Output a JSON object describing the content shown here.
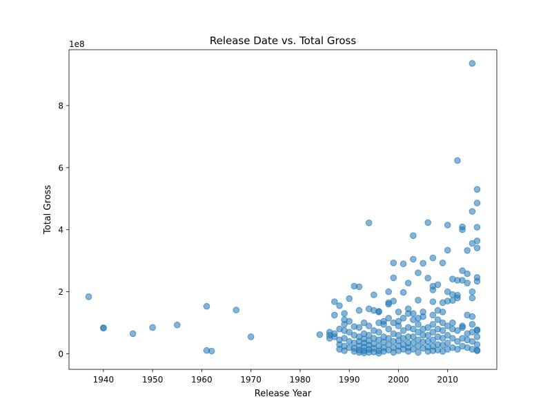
{
  "chart_data": {
    "type": "scatter",
    "title": "Release Date vs. Total Gross",
    "xlabel": "Release Year",
    "ylabel": "Total Gross",
    "y_offset_text": "1e8",
    "xlim": [
      1933,
      2020
    ],
    "ylim": [
      -50000000.0,
      980000000.0
    ],
    "x_ticks": [
      1940,
      1950,
      1960,
      1970,
      1980,
      1990,
      2000,
      2010
    ],
    "x_tick_labels": [
      "1940",
      "1950",
      "1960",
      "1970",
      "1980",
      "1990",
      "2000",
      "2010"
    ],
    "y_ticks": [
      0,
      200000000,
      400000000,
      600000000,
      800000000
    ],
    "y_tick_labels": [
      "0",
      "2",
      "4",
      "6",
      "8"
    ],
    "grid": false,
    "marker_color": "#1f77b4",
    "marker_alpha": 0.55,
    "points": [
      {
        "x": 1937,
        "y": 184000000
      },
      {
        "x": 1940,
        "y": 84000000
      },
      {
        "x": 1940,
        "y": 83000000
      },
      {
        "x": 1946,
        "y": 65000000
      },
      {
        "x": 1950,
        "y": 85000000
      },
      {
        "x": 1955,
        "y": 93000000
      },
      {
        "x": 1961,
        "y": 153000000
      },
      {
        "x": 1961,
        "y": 11000000
      },
      {
        "x": 1962,
        "y": 9000000
      },
      {
        "x": 1967,
        "y": 141000000
      },
      {
        "x": 1970,
        "y": 55000000
      },
      {
        "x": 1984,
        "y": 62000000
      },
      {
        "x": 1986,
        "y": 70000000
      },
      {
        "x": 1986,
        "y": 60000000
      },
      {
        "x": 1986,
        "y": 50000000
      },
      {
        "x": 1987,
        "y": 168000000
      },
      {
        "x": 1987,
        "y": 125000000
      },
      {
        "x": 1987,
        "y": 65000000
      },
      {
        "x": 1987,
        "y": 55000000
      },
      {
        "x": 1988,
        "y": 155000000
      },
      {
        "x": 1988,
        "y": 80000000
      },
      {
        "x": 1988,
        "y": 45000000
      },
      {
        "x": 1988,
        "y": 30000000
      },
      {
        "x": 1988,
        "y": 15000000
      },
      {
        "x": 1989,
        "y": 130000000
      },
      {
        "x": 1989,
        "y": 110000000
      },
      {
        "x": 1989,
        "y": 95000000
      },
      {
        "x": 1989,
        "y": 75000000
      },
      {
        "x": 1989,
        "y": 50000000
      },
      {
        "x": 1989,
        "y": 25000000
      },
      {
        "x": 1989,
        "y": 10000000
      },
      {
        "x": 1990,
        "y": 178000000
      },
      {
        "x": 1990,
        "y": 105000000
      },
      {
        "x": 1990,
        "y": 70000000
      },
      {
        "x": 1990,
        "y": 40000000
      },
      {
        "x": 1990,
        "y": 20000000
      },
      {
        "x": 1991,
        "y": 218000000
      },
      {
        "x": 1991,
        "y": 88000000
      },
      {
        "x": 1991,
        "y": 60000000
      },
      {
        "x": 1991,
        "y": 35000000
      },
      {
        "x": 1991,
        "y": 18000000
      },
      {
        "x": 1991,
        "y": 8000000
      },
      {
        "x": 1992,
        "y": 216000000
      },
      {
        "x": 1992,
        "y": 140000000
      },
      {
        "x": 1992,
        "y": 85000000
      },
      {
        "x": 1992,
        "y": 55000000
      },
      {
        "x": 1992,
        "y": 40000000
      },
      {
        "x": 1992,
        "y": 25000000
      },
      {
        "x": 1992,
        "y": 12000000
      },
      {
        "x": 1992,
        "y": 5000000
      },
      {
        "x": 1993,
        "y": 100000000
      },
      {
        "x": 1993,
        "y": 65000000
      },
      {
        "x": 1993,
        "y": 48000000
      },
      {
        "x": 1993,
        "y": 35000000
      },
      {
        "x": 1993,
        "y": 22000000
      },
      {
        "x": 1993,
        "y": 10000000
      },
      {
        "x": 1993,
        "y": 3000000
      },
      {
        "x": 1994,
        "y": 422000000
      },
      {
        "x": 1994,
        "y": 145000000
      },
      {
        "x": 1994,
        "y": 90000000
      },
      {
        "x": 1994,
        "y": 60000000
      },
      {
        "x": 1994,
        "y": 42000000
      },
      {
        "x": 1994,
        "y": 28000000
      },
      {
        "x": 1994,
        "y": 15000000
      },
      {
        "x": 1994,
        "y": 5000000
      },
      {
        "x": 1995,
        "y": 190000000
      },
      {
        "x": 1995,
        "y": 140000000
      },
      {
        "x": 1995,
        "y": 75000000
      },
      {
        "x": 1995,
        "y": 50000000
      },
      {
        "x": 1995,
        "y": 32000000
      },
      {
        "x": 1995,
        "y": 18000000
      },
      {
        "x": 1995,
        "y": 6000000
      },
      {
        "x": 1996,
        "y": 137000000
      },
      {
        "x": 1996,
        "y": 135000000
      },
      {
        "x": 1996,
        "y": 100000000
      },
      {
        "x": 1996,
        "y": 70000000
      },
      {
        "x": 1996,
        "y": 45000000
      },
      {
        "x": 1996,
        "y": 25000000
      },
      {
        "x": 1996,
        "y": 10000000
      },
      {
        "x": 1996,
        "y": 2000000
      },
      {
        "x": 1997,
        "y": 105000000
      },
      {
        "x": 1997,
        "y": 95000000
      },
      {
        "x": 1997,
        "y": 55000000
      },
      {
        "x": 1997,
        "y": 38000000
      },
      {
        "x": 1997,
        "y": 20000000
      },
      {
        "x": 1997,
        "y": 8000000
      },
      {
        "x": 1998,
        "y": 200000000
      },
      {
        "x": 1998,
        "y": 165000000
      },
      {
        "x": 1998,
        "y": 160000000
      },
      {
        "x": 1998,
        "y": 115000000
      },
      {
        "x": 1998,
        "y": 80000000
      },
      {
        "x": 1998,
        "y": 50000000
      },
      {
        "x": 1998,
        "y": 30000000
      },
      {
        "x": 1998,
        "y": 12000000
      },
      {
        "x": 1999,
        "y": 293000000
      },
      {
        "x": 1999,
        "y": 245000000
      },
      {
        "x": 1999,
        "y": 170000000
      },
      {
        "x": 1999,
        "y": 100000000
      },
      {
        "x": 1999,
        "y": 65000000
      },
      {
        "x": 1999,
        "y": 40000000
      },
      {
        "x": 1999,
        "y": 20000000
      },
      {
        "x": 1999,
        "y": 5000000
      },
      {
        "x": 2000,
        "y": 135000000
      },
      {
        "x": 2000,
        "y": 105000000
      },
      {
        "x": 2000,
        "y": 90000000
      },
      {
        "x": 2000,
        "y": 60000000
      },
      {
        "x": 2000,
        "y": 42000000
      },
      {
        "x": 2000,
        "y": 25000000
      },
      {
        "x": 2000,
        "y": 10000000
      },
      {
        "x": 2001,
        "y": 290000000
      },
      {
        "x": 2001,
        "y": 198000000
      },
      {
        "x": 2001,
        "y": 115000000
      },
      {
        "x": 2001,
        "y": 75000000
      },
      {
        "x": 2001,
        "y": 50000000
      },
      {
        "x": 2001,
        "y": 30000000
      },
      {
        "x": 2001,
        "y": 15000000
      },
      {
        "x": 2002,
        "y": 228000000
      },
      {
        "x": 2002,
        "y": 145000000
      },
      {
        "x": 2002,
        "y": 130000000
      },
      {
        "x": 2002,
        "y": 85000000
      },
      {
        "x": 2002,
        "y": 55000000
      },
      {
        "x": 2002,
        "y": 35000000
      },
      {
        "x": 2002,
        "y": 20000000
      },
      {
        "x": 2002,
        "y": 8000000
      },
      {
        "x": 2003,
        "y": 381000000
      },
      {
        "x": 2003,
        "y": 305000000
      },
      {
        "x": 2003,
        "y": 130000000
      },
      {
        "x": 2003,
        "y": 110000000
      },
      {
        "x": 2003,
        "y": 80000000
      },
      {
        "x": 2003,
        "y": 55000000
      },
      {
        "x": 2003,
        "y": 35000000
      },
      {
        "x": 2003,
        "y": 15000000
      },
      {
        "x": 2004,
        "y": 261000000
      },
      {
        "x": 2004,
        "y": 173000000
      },
      {
        "x": 2004,
        "y": 115000000
      },
      {
        "x": 2004,
        "y": 95000000
      },
      {
        "x": 2004,
        "y": 70000000
      },
      {
        "x": 2004,
        "y": 45000000
      },
      {
        "x": 2004,
        "y": 25000000
      },
      {
        "x": 2004,
        "y": 5000000
      },
      {
        "x": 2005,
        "y": 292000000
      },
      {
        "x": 2005,
        "y": 135000000
      },
      {
        "x": 2005,
        "y": 120000000
      },
      {
        "x": 2005,
        "y": 80000000
      },
      {
        "x": 2005,
        "y": 60000000
      },
      {
        "x": 2005,
        "y": 38000000
      },
      {
        "x": 2005,
        "y": 18000000
      },
      {
        "x": 2006,
        "y": 423000000
      },
      {
        "x": 2006,
        "y": 244000000
      },
      {
        "x": 2006,
        "y": 85000000
      },
      {
        "x": 2006,
        "y": 60000000
      },
      {
        "x": 2006,
        "y": 40000000
      },
      {
        "x": 2006,
        "y": 22000000
      },
      {
        "x": 2006,
        "y": 8000000
      },
      {
        "x": 2007,
        "y": 309000000
      },
      {
        "x": 2007,
        "y": 218000000
      },
      {
        "x": 2007,
        "y": 206000000
      },
      {
        "x": 2007,
        "y": 168000000
      },
      {
        "x": 2007,
        "y": 125000000
      },
      {
        "x": 2007,
        "y": 95000000
      },
      {
        "x": 2007,
        "y": 70000000
      },
      {
        "x": 2007,
        "y": 45000000
      },
      {
        "x": 2007,
        "y": 25000000
      },
      {
        "x": 2007,
        "y": 10000000
      },
      {
        "x": 2008,
        "y": 223000000
      },
      {
        "x": 2008,
        "y": 140000000
      },
      {
        "x": 2008,
        "y": 110000000
      },
      {
        "x": 2008,
        "y": 80000000
      },
      {
        "x": 2008,
        "y": 55000000
      },
      {
        "x": 2008,
        "y": 30000000
      },
      {
        "x": 2008,
        "y": 12000000
      },
      {
        "x": 2009,
        "y": 293000000
      },
      {
        "x": 2009,
        "y": 165000000
      },
      {
        "x": 2009,
        "y": 135000000
      },
      {
        "x": 2009,
        "y": 100000000
      },
      {
        "x": 2009,
        "y": 75000000
      },
      {
        "x": 2009,
        "y": 50000000
      },
      {
        "x": 2009,
        "y": 28000000
      },
      {
        "x": 2009,
        "y": 8000000
      },
      {
        "x": 2010,
        "y": 415000000
      },
      {
        "x": 2010,
        "y": 334000000
      },
      {
        "x": 2010,
        "y": 200000000
      },
      {
        "x": 2010,
        "y": 170000000
      },
      {
        "x": 2010,
        "y": 90000000
      },
      {
        "x": 2010,
        "y": 60000000
      },
      {
        "x": 2010,
        "y": 35000000
      },
      {
        "x": 2010,
        "y": 15000000
      },
      {
        "x": 2011,
        "y": 241000000
      },
      {
        "x": 2011,
        "y": 191000000
      },
      {
        "x": 2011,
        "y": 172000000
      },
      {
        "x": 2011,
        "y": 100000000
      },
      {
        "x": 2011,
        "y": 80000000
      },
      {
        "x": 2011,
        "y": 50000000
      },
      {
        "x": 2011,
        "y": 20000000
      },
      {
        "x": 2012,
        "y": 623000000
      },
      {
        "x": 2012,
        "y": 237000000
      },
      {
        "x": 2012,
        "y": 189000000
      },
      {
        "x": 2012,
        "y": 180000000
      },
      {
        "x": 2012,
        "y": 75000000
      },
      {
        "x": 2012,
        "y": 40000000
      },
      {
        "x": 2012,
        "y": 15000000
      },
      {
        "x": 2013,
        "y": 409000000
      },
      {
        "x": 2013,
        "y": 400000000
      },
      {
        "x": 2013,
        "y": 268000000
      },
      {
        "x": 2013,
        "y": 237000000
      },
      {
        "x": 2013,
        "y": 90000000
      },
      {
        "x": 2013,
        "y": 85000000
      },
      {
        "x": 2013,
        "y": 50000000
      },
      {
        "x": 2013,
        "y": 25000000
      },
      {
        "x": 2014,
        "y": 333000000
      },
      {
        "x": 2014,
        "y": 258000000
      },
      {
        "x": 2014,
        "y": 228000000
      },
      {
        "x": 2014,
        "y": 125000000
      },
      {
        "x": 2014,
        "y": 65000000
      },
      {
        "x": 2014,
        "y": 45000000
      },
      {
        "x": 2014,
        "y": 20000000
      },
      {
        "x": 2015,
        "y": 936000000
      },
      {
        "x": 2015,
        "y": 459000000
      },
      {
        "x": 2015,
        "y": 356000000
      },
      {
        "x": 2015,
        "y": 200000000
      },
      {
        "x": 2015,
        "y": 180000000
      },
      {
        "x": 2015,
        "y": 120000000
      },
      {
        "x": 2015,
        "y": 95000000
      },
      {
        "x": 2015,
        "y": 70000000
      },
      {
        "x": 2015,
        "y": 40000000
      },
      {
        "x": 2015,
        "y": 15000000
      },
      {
        "x": 2016,
        "y": 530000000
      },
      {
        "x": 2016,
        "y": 486000000
      },
      {
        "x": 2016,
        "y": 408000000
      },
      {
        "x": 2016,
        "y": 364000000
      },
      {
        "x": 2016,
        "y": 341000000
      },
      {
        "x": 2016,
        "y": 246000000
      },
      {
        "x": 2016,
        "y": 234000000
      },
      {
        "x": 2016,
        "y": 78000000
      },
      {
        "x": 2016,
        "y": 75000000
      },
      {
        "x": 2016,
        "y": 55000000
      },
      {
        "x": 2016,
        "y": 30000000
      },
      {
        "x": 2016,
        "y": 12000000
      },
      {
        "x": 2016,
        "y": 10000000
      }
    ]
  }
}
